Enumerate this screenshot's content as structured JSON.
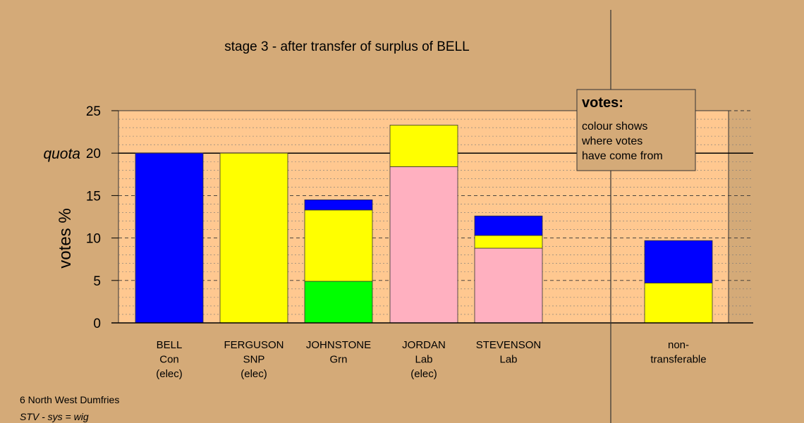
{
  "chart_data": {
    "type": "bar",
    "stacked": true,
    "title": "stage 3 - after transfer of surplus of BELL",
    "ylabel": "votes %",
    "ylim": [
      0,
      25
    ],
    "yticks": [
      0,
      5,
      10,
      15,
      20,
      25
    ],
    "quota": {
      "label": "quota",
      "value": 20
    },
    "colors": {
      "blue": "#0000ff",
      "yellow": "#ffff00",
      "green": "#00ff00",
      "pink": "#ffb0c0",
      "plot_bg": "#ffc890",
      "page_bg": "#d4aa78",
      "legend_bg": "#d4aa78"
    },
    "candidates": [
      {
        "lines": [
          "BELL",
          "Con",
          "(elec)"
        ],
        "segments": [
          {
            "color": "blue",
            "value": 20.0
          }
        ]
      },
      {
        "lines": [
          "FERGUSON",
          "SNP",
          "(elec)"
        ],
        "segments": [
          {
            "color": "yellow",
            "value": 20.0
          }
        ]
      },
      {
        "lines": [
          "JOHNSTONE",
          "Grn"
        ],
        "segments": [
          {
            "color": "green",
            "value": 4.9
          },
          {
            "color": "yellow",
            "value": 8.4
          },
          {
            "color": "blue",
            "value": 1.2
          }
        ]
      },
      {
        "lines": [
          "JORDAN",
          "Lab",
          "(elec)"
        ],
        "segments": [
          {
            "color": "pink",
            "value": 18.4
          },
          {
            "color": "yellow",
            "value": 4.9
          }
        ]
      },
      {
        "lines": [
          "STEVENSON",
          "Lab"
        ],
        "segments": [
          {
            "color": "pink",
            "value": 8.8
          },
          {
            "color": "yellow",
            "value": 1.5
          },
          {
            "color": "blue",
            "value": 2.3
          }
        ]
      }
    ],
    "nontransferable": {
      "lines": [
        "non-",
        "transferable"
      ],
      "segments": [
        {
          "color": "yellow",
          "value": 4.7
        },
        {
          "color": "blue",
          "value": 5.0
        }
      ]
    },
    "legend": {
      "title": "votes:",
      "lines": [
        "colour shows",
        "where votes",
        "have come from"
      ]
    }
  },
  "footer": {
    "constituency": "6 North West Dumfries",
    "system": "STV - sys = wig"
  }
}
